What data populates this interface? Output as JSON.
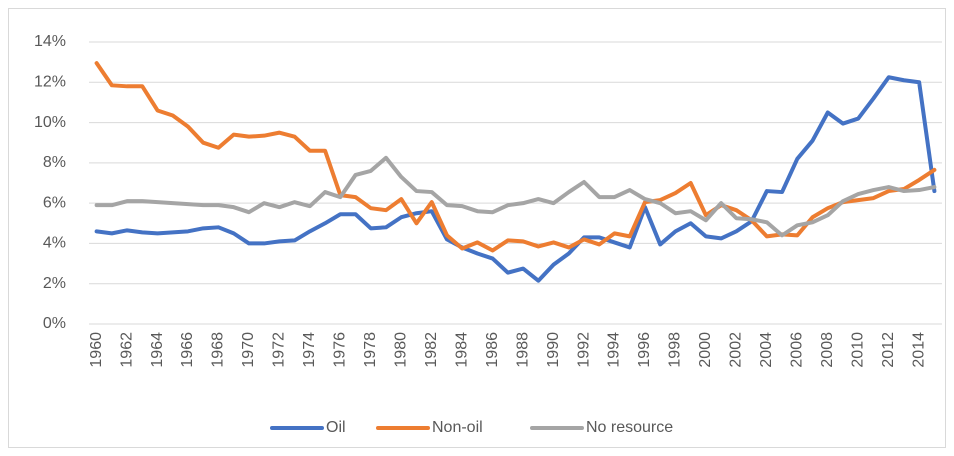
{
  "chart_data": {
    "type": "line",
    "categories": [
      "1960",
      null,
      "1962",
      null,
      "1964",
      null,
      "1966",
      null,
      "1968",
      null,
      "1970",
      null,
      "1972",
      null,
      "1974",
      null,
      "1976",
      null,
      "1978",
      null,
      "1980",
      null,
      "1982",
      null,
      "1984",
      null,
      "1986",
      null,
      "1988",
      null,
      "1990",
      null,
      "1992",
      null,
      "1994",
      null,
      "1996",
      null,
      "1998",
      null,
      "2000",
      null,
      "2002",
      null,
      "2004",
      null,
      "2006",
      null,
      "2008",
      null,
      "2010",
      null,
      "2012",
      null,
      "2014",
      null
    ],
    "series": [
      {
        "name": "Oil",
        "color": "#4472c4",
        "values": [
          4.6,
          4.5,
          4.65,
          4.55,
          4.5,
          4.55,
          4.6,
          4.75,
          4.8,
          4.5,
          4.0,
          4.0,
          4.1,
          4.15,
          4.6,
          5.0,
          5.45,
          5.45,
          4.75,
          4.8,
          5.3,
          5.5,
          5.6,
          4.2,
          3.8,
          3.5,
          3.25,
          2.55,
          2.75,
          2.15,
          2.95,
          3.5,
          4.3,
          4.3,
          4.05,
          3.8,
          5.8,
          3.95,
          4.6,
          5.0,
          4.35,
          4.25,
          4.6,
          5.1,
          6.6,
          6.55,
          8.2,
          9.1,
          10.5,
          9.95,
          10.2,
          11.2,
          12.25,
          12.1,
          12.0,
          6.6
        ]
      },
      {
        "name": "Non-oil",
        "color": "#ed7d31",
        "values": [
          12.95,
          11.85,
          11.8,
          11.8,
          10.6,
          10.35,
          9.8,
          9.0,
          8.75,
          9.4,
          9.3,
          9.35,
          9.5,
          9.3,
          8.6,
          8.6,
          6.4,
          6.3,
          5.75,
          5.65,
          6.2,
          5.0,
          6.05,
          4.4,
          3.75,
          4.05,
          3.65,
          4.15,
          4.1,
          3.85,
          4.05,
          3.8,
          4.2,
          3.95,
          4.5,
          4.35,
          6.05,
          6.15,
          6.5,
          7.0,
          5.4,
          5.9,
          5.65,
          5.15,
          4.35,
          4.45,
          4.4,
          5.3,
          5.75,
          6.05,
          6.15,
          6.25,
          6.6,
          6.7,
          7.15,
          7.65
        ]
      },
      {
        "name": "No resource",
        "color": "#a5a5a5",
        "values": [
          5.9,
          5.9,
          6.1,
          6.1,
          6.05,
          6.0,
          5.95,
          5.9,
          5.9,
          5.8,
          5.55,
          6.0,
          5.8,
          6.05,
          5.85,
          6.55,
          6.3,
          7.4,
          7.6,
          8.25,
          7.3,
          6.6,
          6.55,
          5.9,
          5.85,
          5.6,
          5.55,
          5.9,
          6.0,
          6.2,
          6.0,
          6.55,
          7.05,
          6.3,
          6.3,
          6.65,
          6.2,
          6.0,
          5.5,
          5.6,
          5.15,
          6.0,
          5.25,
          5.2,
          5.05,
          4.4,
          4.9,
          5.05,
          5.4,
          6.1,
          6.45,
          6.65,
          6.8,
          6.6,
          6.65,
          6.8
        ]
      }
    ],
    "ylim": [
      0,
      14
    ],
    "yticks": [
      {
        "value": 0,
        "label": "0%"
      },
      {
        "value": 2,
        "label": "2%"
      },
      {
        "value": 4,
        "label": "4%"
      },
      {
        "value": 6,
        "label": "6%"
      },
      {
        "value": 8,
        "label": "8%"
      },
      {
        "value": 10,
        "label": "10%"
      },
      {
        "value": 12,
        "label": "12%"
      },
      {
        "value": 14,
        "label": "14%"
      }
    ],
    "grid": true,
    "legend": "bottom"
  }
}
